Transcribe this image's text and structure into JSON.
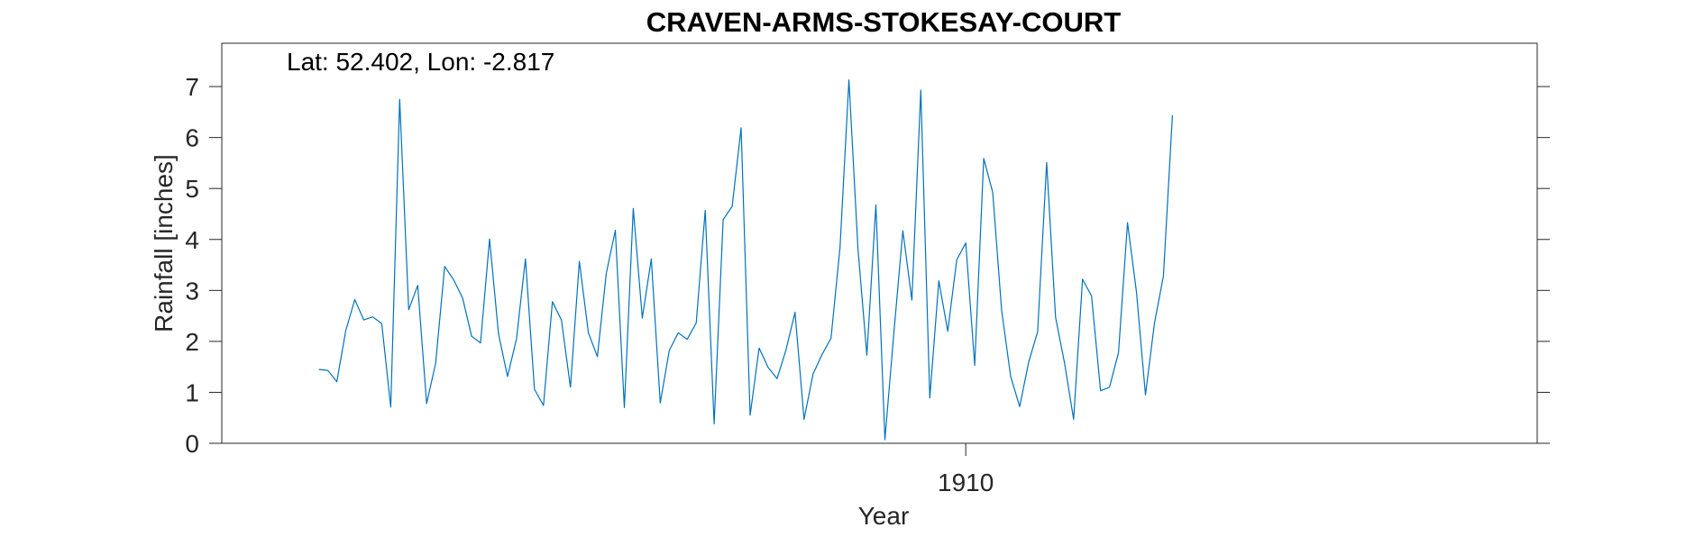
{
  "chart_data": {
    "type": "line",
    "title": "CRAVEN-ARMS-STOKESAY-COURT",
    "annotation": "Lat: 52.402, Lon: -2.817",
    "xlabel": "Year",
    "ylabel": "Rainfall [inches]",
    "xlim": [
      1903.1,
      1915.3
    ],
    "ylim": [
      0,
      7.85
    ],
    "x_ticks": [
      1910
    ],
    "x_tick_labels": [
      "1910"
    ],
    "y_ticks": [
      0,
      1,
      2,
      3,
      4,
      5,
      6,
      7
    ],
    "y_tick_labels": [
      "0",
      "1",
      "2",
      "3",
      "4",
      "5",
      "6",
      "7"
    ],
    "grid": false,
    "line_color": "#0072BD",
    "series": [
      {
        "start_year": 1904,
        "values": [
          1.45,
          1.43,
          1.21,
          2.21,
          2.82,
          2.42,
          2.48,
          2.35,
          0.71,
          6.75,
          2.62,
          3.1,
          0.78,
          1.57,
          3.47,
          3.21,
          2.85,
          2.1,
          1.97,
          4.01,
          2.15,
          1.31,
          2.05,
          3.62,
          1.06,
          0.74,
          2.78,
          2.42,
          1.1,
          3.57,
          2.17,
          1.7,
          3.34,
          4.18,
          0.7,
          4.61,
          2.46,
          3.62,
          0.79,
          1.82,
          2.17,
          2.04,
          2.36,
          4.57,
          0.38,
          4.39,
          4.65,
          6.19,
          0.55,
          1.87,
          1.49,
          1.27,
          1.84,
          2.57,
          0.47,
          1.36,
          1.74,
          2.06,
          3.84,
          7.13,
          3.82,
          1.73,
          4.68,
          0.07,
          2.16,
          4.17,
          2.81,
          6.93,
          0.89,
          3.19,
          2.2,
          3.6,
          3.93,
          1.53,
          5.59,
          4.92,
          2.6,
          1.31,
          0.72,
          1.59,
          2.19,
          5.51,
          2.47,
          1.57,
          0.47,
          3.22,
          2.89,
          1.03,
          1.1,
          1.78,
          4.33,
          2.97,
          0.95,
          2.36,
          3.28,
          6.44
        ]
      }
    ]
  }
}
